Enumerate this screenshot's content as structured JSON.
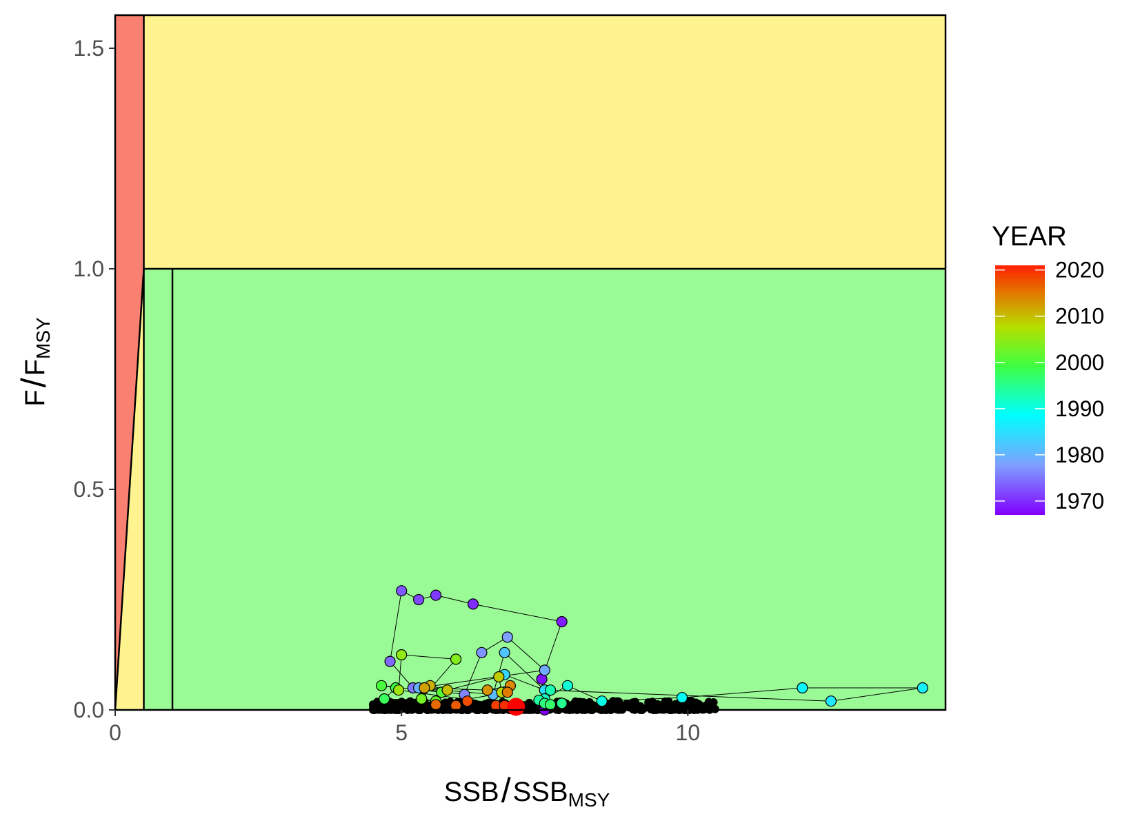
{
  "chart_data": {
    "type": "scatter",
    "title": "",
    "xlabel": {
      "main": "SSB",
      "sep": "/",
      "denom": "SSB",
      "sub": "MSY"
    },
    "ylabel": {
      "main": "F",
      "sep": "/",
      "denom": "F",
      "sub": "MSY"
    },
    "xlim": [
      0,
      14.5
    ],
    "ylim": [
      0,
      1.575
    ],
    "x_ticks": [
      0,
      5,
      10
    ],
    "x_tick_labels": [
      "0",
      "5",
      "10"
    ],
    "y_ticks": [
      0,
      0.5,
      1.0,
      1.5
    ],
    "y_tick_labels": [
      "0.0",
      "0.5",
      "1.0",
      "1.5"
    ],
    "grid": false,
    "zones": {
      "red": {
        "color": "#FA8072",
        "x_max": 0.5
      },
      "yellow": {
        "color": "#FFF38F"
      },
      "green": {
        "color": "#9AFA96",
        "x_min": 0.5,
        "y_max": 1.0
      },
      "lines": {
        "x_limit": 0.5,
        "x_msy": 1.0,
        "y_msy": 1.0
      }
    },
    "legend": {
      "title": "YEAR",
      "position": "right",
      "min": 1967,
      "max": 2021,
      "ticks": [
        1970,
        1980,
        1990,
        2000,
        2010,
        2020
      ],
      "tick_labels": [
        "1970",
        "1980",
        "1990",
        "2000",
        "2010",
        "2020"
      ]
    },
    "series": [
      {
        "year": [
          1967,
          1968,
          1969,
          1970,
          1971,
          1972,
          1973,
          1974,
          1975,
          1976,
          1977,
          1978,
          1979,
          1980,
          1981,
          1982,
          1983,
          1984,
          1985,
          1986,
          1987,
          1988,
          1989,
          1990,
          1991,
          1992,
          1993,
          1994,
          1995,
          1996,
          1997,
          1998,
          1999,
          2000,
          2001,
          2002,
          2003,
          2004,
          2005,
          2006,
          2007,
          2008,
          2009,
          2010,
          2011,
          2012,
          2013,
          2014,
          2015,
          2016,
          2017,
          2018,
          2019,
          2020,
          2021
        ],
        "x": [
          7.5,
          7.45,
          7.8,
          6.25,
          5.6,
          5.3,
          5.0,
          4.8,
          5.2,
          6.1,
          6.4,
          6.85,
          7.5,
          5.3,
          6.6,
          6.8,
          7.5,
          6.8,
          7.5,
          12.5,
          14.1,
          12.0,
          9.9,
          8.5,
          7.9,
          7.5,
          7.6,
          7.4,
          7.8,
          7.5,
          7.6,
          4.7,
          4.9,
          4.65,
          5.7,
          5.6,
          5.35,
          5.95,
          5.0,
          4.95,
          6.8,
          6.75,
          6.7,
          5.8,
          5.5,
          5.4,
          6.5,
          6.9,
          6.85,
          5.6,
          5.95,
          6.15,
          6.65,
          6.8,
          7.0
        ],
        "y": [
          0.0,
          0.07,
          0.2,
          0.24,
          0.26,
          0.25,
          0.27,
          0.11,
          0.05,
          0.035,
          0.13,
          0.165,
          0.09,
          0.05,
          0.035,
          0.13,
          0.045,
          0.08,
          0.045,
          0.02,
          0.05,
          0.05,
          0.028,
          0.02,
          0.055,
          0.025,
          0.045,
          0.022,
          0.015,
          0.015,
          0.012,
          0.025,
          0.05,
          0.055,
          0.04,
          0.02,
          0.025,
          0.115,
          0.125,
          0.045,
          0.012,
          0.04,
          0.075,
          0.045,
          0.055,
          0.05,
          0.045,
          0.055,
          0.04,
          0.012,
          0.01,
          0.02,
          0.01,
          0.01,
          0.007
        ]
      }
    ],
    "uncertainty_points": {
      "color": "#000000",
      "note": "",
      "x_range": [
        4.5,
        10.5
      ],
      "y_range": [
        0.0,
        0.02
      ]
    },
    "highlight": {
      "year": 2021,
      "color": "#FF0000"
    }
  }
}
